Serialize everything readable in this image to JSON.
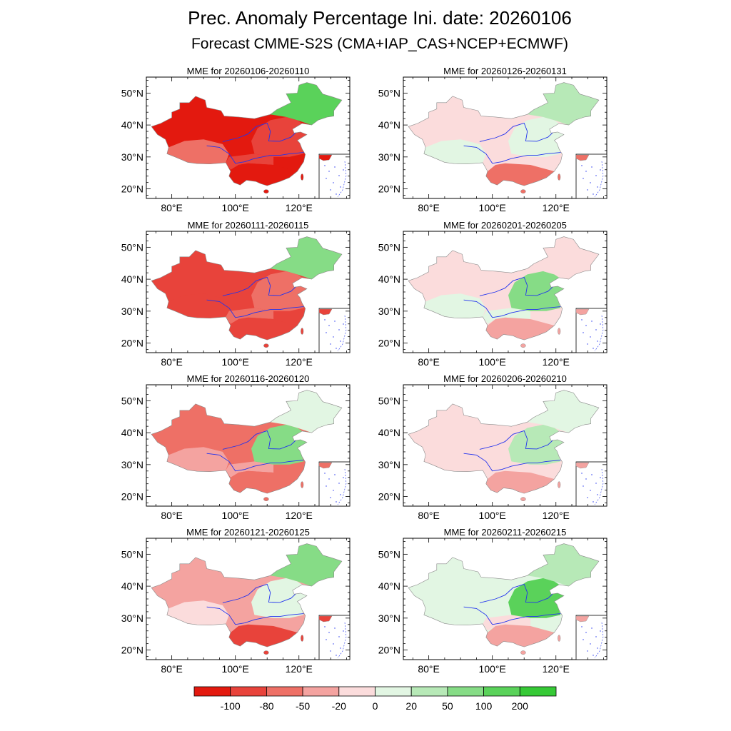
{
  "figure": {
    "title_line1": "Prec. Anomaly Percentage Ini. date: 20260106",
    "title_line2": "Forecast CMME-S2S (CMA+IAP_CAS+NCEP+ECMWF)"
  },
  "axes": {
    "lat_labels": [
      "50°N",
      "40°N",
      "30°N",
      "20°N"
    ],
    "lon_labels": [
      "80°E",
      "100°E",
      "120°E"
    ]
  },
  "colors": {
    "r4": "#e3190f",
    "r3": "#e8433b",
    "r2": "#ee7066",
    "r1": "#f4a3a0",
    "r0": "#fbdcdc",
    "g0": "#e2f6e3",
    "g1": "#b7e9b7",
    "g2": "#86dc86",
    "g3": "#5ad25a",
    "g4": "#36c936",
    "river": "#2233ee",
    "inset_bg": "#ffffff"
  },
  "panels": [
    {
      "label": "MME for 20260106-20260110",
      "tone": {
        "west": "r4",
        "central": "r3",
        "south": "r4",
        "northeast": "g3",
        "east": "r3",
        "tibet": "r2"
      }
    },
    {
      "label": "MME for 20260111-20260115",
      "tone": {
        "west": "r3",
        "central": "r2",
        "south": "r3",
        "northeast": "g2",
        "east": "r2",
        "tibet": "r3"
      }
    },
    {
      "label": "MME for 20260116-20260120",
      "tone": {
        "west": "r2",
        "central": "r1",
        "south": "r2",
        "northeast": "g0",
        "east": "g2",
        "tibet": "r1"
      }
    },
    {
      "label": "MME for 20260121-20260125",
      "tone": {
        "west": "r1",
        "central": "r1",
        "south": "r3",
        "northeast": "g2",
        "east": "g0",
        "tibet": "r0"
      }
    },
    {
      "label": "MME for 20260126-20260131",
      "tone": {
        "west": "r0",
        "central": "r0",
        "south": "r2",
        "northeast": "g1",
        "east": "g0",
        "tibet": "g0"
      }
    },
    {
      "label": "MME for 20260201-20260205",
      "tone": {
        "west": "r0",
        "central": "g0",
        "south": "r1",
        "northeast": "r0",
        "east": "g2",
        "tibet": "g0"
      }
    },
    {
      "label": "MME for 20260206-20260210",
      "tone": {
        "west": "r0",
        "central": "r0",
        "south": "r1",
        "northeast": "g0",
        "east": "g1",
        "tibet": "r0"
      }
    },
    {
      "label": "MME for 20260211-20260215",
      "tone": {
        "west": "g0",
        "central": "r0",
        "south": "r1",
        "northeast": "g1",
        "east": "g3",
        "tibet": "g0"
      }
    }
  ],
  "colorbar": {
    "ticks": [
      "-100",
      "-80",
      "-50",
      "-20",
      "0",
      "20",
      "50",
      "100",
      "200"
    ],
    "bins": [
      "r4",
      "r3",
      "r2",
      "r1",
      "r0",
      "g0",
      "g1",
      "g2",
      "g3",
      "g4"
    ]
  }
}
